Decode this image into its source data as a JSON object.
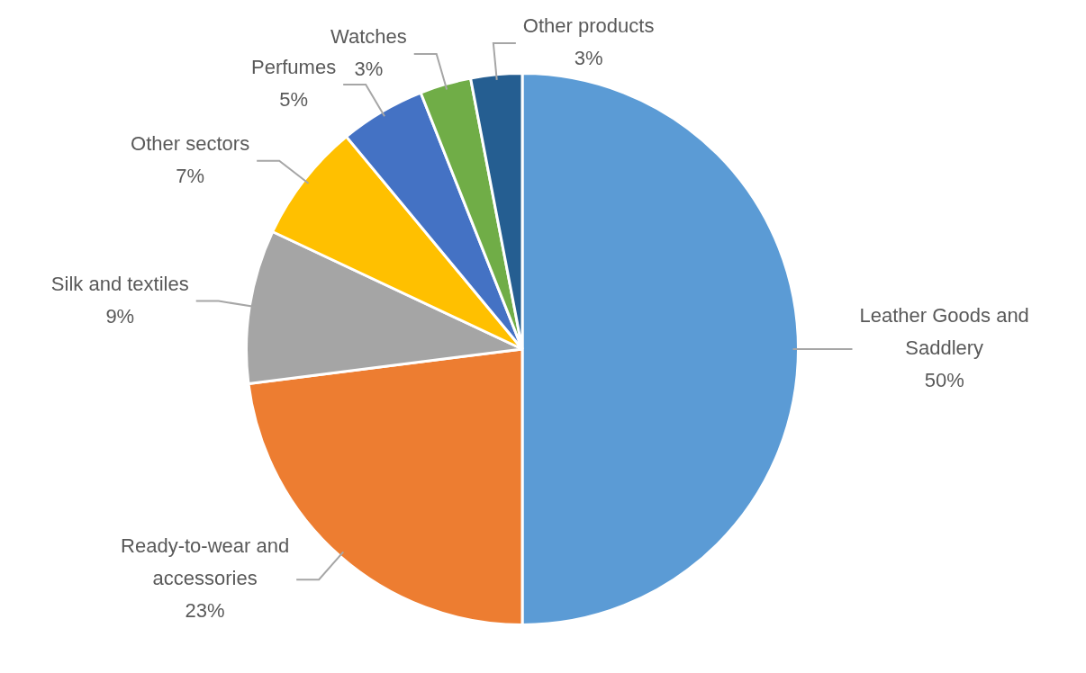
{
  "chart_data": {
    "type": "pie",
    "categories": [
      "Leather Goods and Saddlery",
      "Ready-to-wear and accessories",
      "Silk and textiles",
      "Other sectors",
      "Perfumes",
      "Watches",
      "Other products"
    ],
    "values": [
      50,
      23,
      9,
      7,
      5,
      3,
      3
    ],
    "value_labels": [
      "50%",
      "23%",
      "9%",
      "7%",
      "5%",
      "3%",
      "3%"
    ],
    "colors": [
      "#5b9bd5",
      "#ed7d31",
      "#a5a5a5",
      "#ffc000",
      "#4472c4",
      "#70ad47",
      "#255e91"
    ]
  }
}
